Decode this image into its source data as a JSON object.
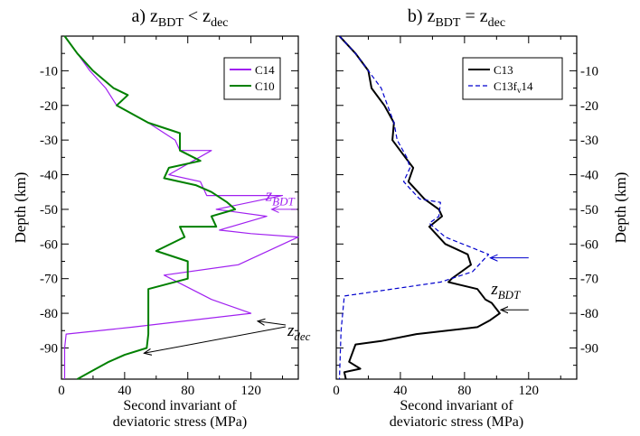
{
  "chart_data": [
    {
      "type": "line",
      "title": "a) z_BDT < z_dec",
      "title_parts": {
        "prefix": "a) z",
        "sub1": "BDT",
        "mid": " < z",
        "sub2": "dec"
      },
      "xlabel": [
        "Second invariant of",
        "deviatoric stress (MPa)"
      ],
      "ylabel": "Depth (km)",
      "xlim": [
        0,
        150
      ],
      "ylim": [
        -99,
        0
      ],
      "xticks": [
        0,
        40,
        80,
        120
      ],
      "yticks": [
        -10,
        -20,
        -30,
        -40,
        -50,
        -60,
        -70,
        -80,
        -90
      ],
      "ytick_side": "left",
      "grid": false,
      "legend_position": "top-right",
      "series": [
        {
          "name": "C14",
          "color": "#a020f0",
          "dash": "solid",
          "points": [
            [
              2,
              0
            ],
            [
              10,
              -5
            ],
            [
              18,
              -10
            ],
            [
              28,
              -15
            ],
            [
              35,
              -20
            ],
            [
              55,
              -25
            ],
            [
              72,
              -30
            ],
            [
              75,
              -33
            ],
            [
              95,
              -33
            ],
            [
              68,
              -40
            ],
            [
              88,
              -42
            ],
            [
              92,
              -46
            ],
            [
              140,
              -46
            ],
            [
              98,
              -50
            ],
            [
              130,
              -52
            ],
            [
              100,
              -56
            ],
            [
              120,
              -57
            ],
            [
              150,
              -58
            ],
            [
              112,
              -66
            ],
            [
              65,
              -69
            ],
            [
              95,
              -76
            ],
            [
              120,
              -80
            ],
            [
              45,
              -84
            ],
            [
              3,
              -86
            ],
            [
              2,
              -90
            ],
            [
              2,
              -99
            ]
          ]
        },
        {
          "name": "C10",
          "color": "#008000",
          "dash": "solid",
          "points": [
            [
              2,
              0
            ],
            [
              10,
              -5
            ],
            [
              20,
              -10
            ],
            [
              33,
              -15
            ],
            [
              42,
              -17
            ],
            [
              35,
              -20
            ],
            [
              55,
              -25
            ],
            [
              75,
              -28
            ],
            [
              75,
              -33
            ],
            [
              88,
              -36
            ],
            [
              68,
              -38
            ],
            [
              65,
              -41
            ],
            [
              85,
              -43
            ],
            [
              95,
              -45
            ],
            [
              105,
              -48
            ],
            [
              110,
              -50
            ],
            [
              95,
              -52
            ],
            [
              98,
              -55
            ],
            [
              75,
              -55
            ],
            [
              78,
              -58
            ],
            [
              60,
              -62
            ],
            [
              80,
              -65
            ],
            [
              80,
              -70
            ],
            [
              55,
              -73
            ],
            [
              55,
              -78
            ],
            [
              55,
              -81
            ],
            [
              55,
              -86
            ],
            [
              54,
              -90
            ],
            [
              40,
              -92
            ],
            [
              30,
              -94
            ],
            [
              18,
              -97
            ],
            [
              10,
              -99
            ]
          ]
        }
      ],
      "annotations": [
        {
          "text": "z",
          "sub": "BDT",
          "color": "#a020f0",
          "target": [
            132,
            -50
          ],
          "label_at": [
            143,
            -46
          ]
        },
        {
          "text": "z",
          "sub": "dec",
          "color": "#000000",
          "target_a": [
            122,
            -82
          ],
          "target_b": [
            50,
            -91
          ],
          "label_at": [
            143,
            -87
          ]
        }
      ]
    },
    {
      "type": "line",
      "title": "b) z_BDT = z_dec",
      "title_parts": {
        "prefix": "b) z",
        "sub1": "BDT",
        "mid": " = z",
        "sub2": "dec"
      },
      "xlabel": [
        "Second invariant of",
        "deviatoric stress (MPa)"
      ],
      "ylabel": "Depth (km)",
      "xlim": [
        0,
        150
      ],
      "ylim": [
        -99,
        0
      ],
      "xticks": [
        0,
        40,
        80,
        120
      ],
      "yticks": [
        -10,
        -20,
        -30,
        -40,
        -50,
        -60,
        -70,
        -80,
        -90
      ],
      "ytick_side": "right",
      "grid": false,
      "legend_position": "top-right",
      "series": [
        {
          "name": "C13",
          "name_parts": {
            "main": "C13",
            "sub": "",
            "suffix": ""
          },
          "color": "#000000",
          "dash": "solid",
          "points": [
            [
              2,
              0
            ],
            [
              12,
              -5
            ],
            [
              20,
              -10
            ],
            [
              22,
              -15
            ],
            [
              30,
              -20
            ],
            [
              36,
              -25
            ],
            [
              35,
              -30
            ],
            [
              43,
              -35
            ],
            [
              48,
              -38
            ],
            [
              45,
              -42
            ],
            [
              55,
              -47
            ],
            [
              64,
              -50
            ],
            [
              66,
              -52
            ],
            [
              58,
              -55
            ],
            [
              68,
              -60
            ],
            [
              82,
              -63
            ],
            [
              84,
              -66
            ],
            [
              72,
              -70
            ],
            [
              70,
              -71
            ],
            [
              88,
              -73
            ],
            [
              93,
              -76
            ],
            [
              97,
              -77
            ],
            [
              102,
              -80
            ],
            [
              96,
              -82
            ],
            [
              88,
              -84
            ],
            [
              50,
              -86
            ],
            [
              28,
              -88
            ],
            [
              12,
              -89
            ],
            [
              8,
              -94
            ],
            [
              15,
              -96
            ],
            [
              5,
              -97
            ],
            [
              6,
              -99
            ]
          ]
        },
        {
          "name": "C13f_v14",
          "name_parts": {
            "main": "C13f",
            "sub": "v",
            "suffix": "14"
          },
          "color": "#0000cd",
          "dash": "dashed",
          "points": [
            [
              2,
              0
            ],
            [
              12,
              -5
            ],
            [
              20,
              -10
            ],
            [
              28,
              -15
            ],
            [
              32,
              -20
            ],
            [
              36,
              -25
            ],
            [
              38,
              -30
            ],
            [
              44,
              -35
            ],
            [
              46,
              -38
            ],
            [
              42,
              -42
            ],
            [
              52,
              -47
            ],
            [
              65,
              -48
            ],
            [
              64,
              -52
            ],
            [
              58,
              -54
            ],
            [
              68,
              -58
            ],
            [
              95,
              -63
            ],
            [
              85,
              -68
            ],
            [
              65,
              -71
            ],
            [
              5,
              -75
            ],
            [
              3,
              -85
            ],
            [
              2,
              -99
            ]
          ]
        }
      ],
      "annotations": [
        {
          "text": "",
          "color": "#0000cd",
          "arrow_from": [
            120,
            -64
          ],
          "target": [
            95,
            -64
          ]
        },
        {
          "text": "z",
          "sub": "BDT",
          "color": "#000000",
          "arrow_from": [
            120,
            -79
          ],
          "target": [
            101,
            -79
          ],
          "label_at": [
            100,
            -74
          ]
        }
      ]
    }
  ]
}
